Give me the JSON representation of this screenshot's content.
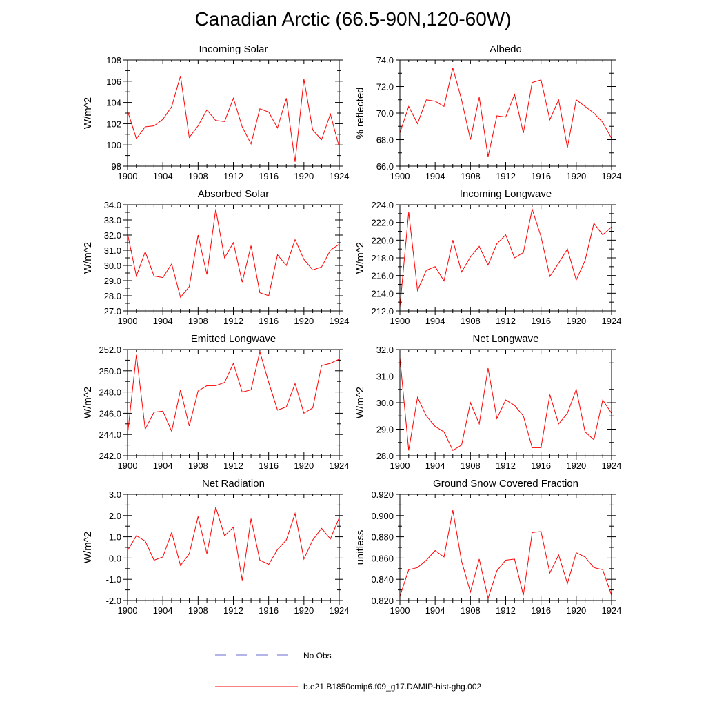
{
  "figure": {
    "title": "Canadian Arctic (66.5-90N,120-60W)",
    "line_color": "#ff0000",
    "obs_color": "#6a6ad0",
    "legend": [
      {
        "label": "No Obs",
        "style": "dashed"
      },
      {
        "label": "b.e21.B1850cmip6.f09_g17.DAMIP-hist-ghg.002",
        "style": "solid"
      }
    ]
  },
  "chart_data": [
    {
      "type": "line",
      "title": "Incoming Solar",
      "ylabel": "W/m^2",
      "xlim": [
        1900,
        1924
      ],
      "ylim": [
        98,
        108
      ],
      "xticks": [
        "1900",
        "1904",
        "1908",
        "1912",
        "1916",
        "1920",
        "1924"
      ],
      "yticks": [
        "98",
        "100",
        "102",
        "104",
        "106",
        "108"
      ],
      "ytick_values": [
        98,
        100,
        102,
        104,
        106,
        108
      ],
      "series": [
        {
          "x": [
            1900,
            1901,
            1902,
            1903,
            1904,
            1905,
            1906,
            1907,
            1908,
            1909,
            1910,
            1911,
            1912,
            1913,
            1914,
            1915,
            1916,
            1917,
            1918,
            1919,
            1920,
            1921,
            1922,
            1923,
            1924
          ],
          "values": [
            103.2,
            100.6,
            101.7,
            101.8,
            102.4,
            103.6,
            106.5,
            100.7,
            101.8,
            103.3,
            102.3,
            102.2,
            104.4,
            101.7,
            100.1,
            103.4,
            103.1,
            101.6,
            104.4,
            98.4,
            106.2,
            101.4,
            100.5,
            102.9,
            99.8
          ]
        }
      ]
    },
    {
      "type": "line",
      "title": "Albedo",
      "ylabel": "% reflected",
      "xlim": [
        1900,
        1924
      ],
      "ylim": [
        66,
        74
      ],
      "xticks": [
        "1900",
        "1904",
        "1908",
        "1912",
        "1916",
        "1920",
        "1924"
      ],
      "yticks": [
        "66.0",
        "68.0",
        "70.0",
        "72.0",
        "74.0"
      ],
      "ytick_values": [
        66,
        68,
        70,
        72,
        74
      ],
      "series": [
        {
          "x": [
            1900,
            1901,
            1902,
            1903,
            1904,
            1905,
            1906,
            1907,
            1908,
            1909,
            1910,
            1911,
            1912,
            1913,
            1914,
            1915,
            1916,
            1917,
            1918,
            1919,
            1920,
            1921,
            1922,
            1923,
            1924
          ],
          "values": [
            68.5,
            70.5,
            69.2,
            71.0,
            70.9,
            70.5,
            73.4,
            71.0,
            68.0,
            71.2,
            66.7,
            69.8,
            69.7,
            71.4,
            68.5,
            72.3,
            72.5,
            69.5,
            71.0,
            67.4,
            71.0,
            70.5,
            70.0,
            69.3,
            68.1
          ]
        }
      ]
    },
    {
      "type": "line",
      "title": "Absorbed Solar",
      "ylabel": "W/m^2",
      "xlim": [
        1900,
        1924
      ],
      "ylim": [
        27,
        34
      ],
      "xticks": [
        "1900",
        "1904",
        "1908",
        "1912",
        "1916",
        "1920",
        "1924"
      ],
      "yticks": [
        "27.0",
        "28.0",
        "29.0",
        "30.0",
        "31.0",
        "32.0",
        "33.0",
        "34.0"
      ],
      "ytick_values": [
        27,
        28,
        29,
        30,
        31,
        32,
        33,
        34
      ],
      "series": [
        {
          "x": [
            1900,
            1901,
            1902,
            1903,
            1904,
            1905,
            1906,
            1907,
            1908,
            1909,
            1910,
            1911,
            1912,
            1913,
            1914,
            1915,
            1916,
            1917,
            1918,
            1919,
            1920,
            1921,
            1922,
            1923,
            1924
          ],
          "values": [
            32.1,
            29.3,
            30.9,
            29.3,
            29.2,
            30.1,
            27.9,
            28.6,
            32.0,
            29.4,
            33.7,
            30.5,
            31.5,
            28.9,
            31.3,
            28.2,
            28.0,
            30.7,
            30.0,
            31.7,
            30.4,
            29.7,
            29.9,
            31.0,
            31.4
          ]
        }
      ]
    },
    {
      "type": "line",
      "title": "Incoming Longwave",
      "ylabel": "W/m^2",
      "xlim": [
        1900,
        1924
      ],
      "ylim": [
        212,
        224
      ],
      "xticks": [
        "1900",
        "1904",
        "1908",
        "1912",
        "1916",
        "1920",
        "1924"
      ],
      "yticks": [
        "212.0",
        "214.0",
        "216.0",
        "218.0",
        "220.0",
        "222.0",
        "224.0"
      ],
      "ytick_values": [
        212,
        214,
        216,
        218,
        220,
        222,
        224
      ],
      "series": [
        {
          "x": [
            1900,
            1901,
            1902,
            1903,
            1904,
            1905,
            1906,
            1907,
            1908,
            1909,
            1910,
            1911,
            1912,
            1913,
            1914,
            1915,
            1916,
            1917,
            1918,
            1919,
            1920,
            1921,
            1922,
            1923,
            1924
          ],
          "values": [
            212.4,
            223.2,
            214.3,
            216.6,
            217.0,
            215.4,
            220.0,
            216.4,
            218.1,
            219.3,
            217.2,
            219.6,
            220.6,
            218.0,
            218.6,
            223.5,
            220.4,
            215.9,
            217.4,
            219.0,
            215.5,
            217.7,
            221.9,
            220.6,
            221.5
          ]
        }
      ]
    },
    {
      "type": "line",
      "title": "Emitted Longwave",
      "ylabel": "W/m^2",
      "xlim": [
        1900,
        1924
      ],
      "ylim": [
        242,
        252
      ],
      "xticks": [
        "1900",
        "1904",
        "1908",
        "1912",
        "1916",
        "1920",
        "1924"
      ],
      "yticks": [
        "242.0",
        "244.0",
        "246.0",
        "248.0",
        "250.0",
        "252.0"
      ],
      "ytick_values": [
        242,
        244,
        246,
        248,
        250,
        252
      ],
      "series": [
        {
          "x": [
            1900,
            1901,
            1902,
            1903,
            1904,
            1905,
            1906,
            1907,
            1908,
            1909,
            1910,
            1911,
            1912,
            1913,
            1914,
            1915,
            1916,
            1917,
            1918,
            1919,
            1920,
            1921,
            1922,
            1923,
            1924
          ],
          "values": [
            244.0,
            251.5,
            244.5,
            246.1,
            246.2,
            244.3,
            248.2,
            244.8,
            248.1,
            248.6,
            248.6,
            248.9,
            250.7,
            248.0,
            248.2,
            251.8,
            248.9,
            246.3,
            246.6,
            248.8,
            246.0,
            246.5,
            250.5,
            250.7,
            251.1
          ]
        }
      ]
    },
    {
      "type": "line",
      "title": "Net Longwave",
      "ylabel": "W/m^2",
      "xlim": [
        1900,
        1924
      ],
      "ylim": [
        28,
        32
      ],
      "xticks": [
        "1900",
        "1904",
        "1908",
        "1912",
        "1916",
        "1920",
        "1924"
      ],
      "yticks": [
        "28.0",
        "29.0",
        "30.0",
        "31.0",
        "32.0"
      ],
      "ytick_values": [
        28,
        29,
        30,
        31,
        32
      ],
      "series": [
        {
          "x": [
            1900,
            1901,
            1902,
            1903,
            1904,
            1905,
            1906,
            1907,
            1908,
            1909,
            1910,
            1911,
            1912,
            1913,
            1914,
            1915,
            1916,
            1917,
            1918,
            1919,
            1920,
            1921,
            1922,
            1923,
            1924
          ],
          "values": [
            31.7,
            28.2,
            30.2,
            29.5,
            29.1,
            28.9,
            28.2,
            28.4,
            30.0,
            29.2,
            31.3,
            29.4,
            30.1,
            29.9,
            29.5,
            28.3,
            28.3,
            30.3,
            29.2,
            29.6,
            30.5,
            28.9,
            28.6,
            30.1,
            29.6
          ]
        }
      ]
    },
    {
      "type": "line",
      "title": "Net Radiation",
      "ylabel": "W/m^2",
      "xlim": [
        1900,
        1924
      ],
      "ylim": [
        -2,
        3
      ],
      "xticks": [
        "1900",
        "1904",
        "1908",
        "1912",
        "1916",
        "1920",
        "1924"
      ],
      "yticks": [
        "-2.0",
        "-1.0",
        "0.0",
        "1.0",
        "2.0",
        "3.0"
      ],
      "ytick_values": [
        -2,
        -1,
        0,
        1,
        2,
        3
      ],
      "series": [
        {
          "x": [
            1900,
            1901,
            1902,
            1903,
            1904,
            1905,
            1906,
            1907,
            1908,
            1909,
            1910,
            1911,
            1912,
            1913,
            1914,
            1915,
            1916,
            1917,
            1918,
            1919,
            1920,
            1921,
            1922,
            1923,
            1924
          ],
          "values": [
            0.35,
            1.05,
            0.8,
            -0.1,
            0.05,
            1.2,
            -0.35,
            0.2,
            1.95,
            0.2,
            2.4,
            1.05,
            1.45,
            -1.05,
            1.85,
            -0.1,
            -0.3,
            0.4,
            0.85,
            2.1,
            -0.05,
            0.85,
            1.4,
            0.9,
            1.9
          ]
        }
      ]
    },
    {
      "type": "line",
      "title": "Ground Snow Covered Fraction",
      "ylabel": "unitless",
      "xlim": [
        1900,
        1924
      ],
      "ylim": [
        0.82,
        0.92
      ],
      "xticks": [
        "1900",
        "1904",
        "1908",
        "1912",
        "1916",
        "1920",
        "1924"
      ],
      "yticks": [
        "0.820",
        "0.840",
        "0.860",
        "0.880",
        "0.900",
        "0.920"
      ],
      "ytick_values": [
        0.82,
        0.84,
        0.86,
        0.88,
        0.9,
        0.92
      ],
      "series": [
        {
          "x": [
            1900,
            1901,
            1902,
            1903,
            1904,
            1905,
            1906,
            1907,
            1908,
            1909,
            1910,
            1911,
            1912,
            1913,
            1914,
            1915,
            1916,
            1917,
            1918,
            1919,
            1920,
            1921,
            1922,
            1923,
            1924
          ],
          "values": [
            0.824,
            0.849,
            0.851,
            0.858,
            0.867,
            0.861,
            0.905,
            0.857,
            0.828,
            0.859,
            0.822,
            0.848,
            0.858,
            0.859,
            0.825,
            0.884,
            0.885,
            0.846,
            0.863,
            0.836,
            0.865,
            0.861,
            0.851,
            0.849,
            0.825
          ]
        }
      ]
    }
  ]
}
